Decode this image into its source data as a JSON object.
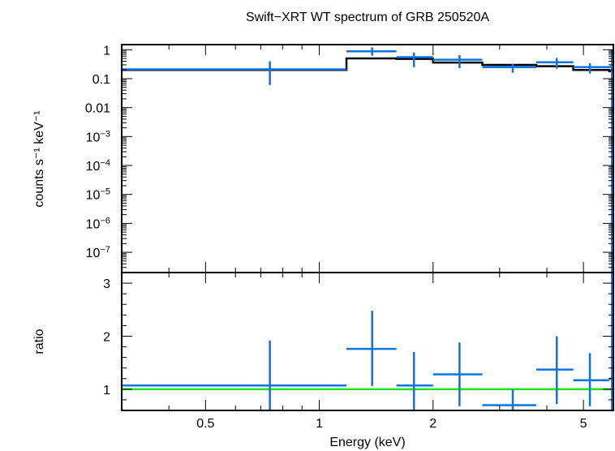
{
  "chart_data": [
    {
      "type": "scatter",
      "title": "Swift−XRT WT spectrum of GRB 250520A",
      "ylabel": "counts s⁻¹ keV⁻¹",
      "xlim": [
        0.3,
        6.0
      ],
      "ylim": [
        2e-08,
        1.5
      ],
      "xscale": "log",
      "yscale": "log",
      "y_ticks": [
        {
          "value": 1,
          "label": "1",
          "exp": ""
        },
        {
          "value": 0.1,
          "label": "0.1",
          "exp": ""
        },
        {
          "value": 0.01,
          "label": "0.01",
          "exp": ""
        },
        {
          "value": 0.001,
          "label": "10",
          "exp": "−3"
        },
        {
          "value": 0.0001,
          "label": "10",
          "exp": "−4"
        },
        {
          "value": 1e-05,
          "label": "10",
          "exp": "−5"
        },
        {
          "value": 1e-06,
          "label": "10",
          "exp": "−6"
        },
        {
          "value": 1e-07,
          "label": "10",
          "exp": "−7"
        }
      ],
      "series": [
        {
          "color": "#0a74e0",
          "points": [
            {
              "x_lo": 0.3,
              "x_hi": 1.18,
              "x": 0.74,
              "y": 0.21,
              "y_lo": 0.06,
              "y_hi": 0.4
            },
            {
              "x_lo": 1.18,
              "x_hi": 1.6,
              "x": 1.38,
              "y": 0.88,
              "y_lo": 0.62,
              "y_hi": 1.2
            },
            {
              "x_lo": 1.6,
              "x_hi": 2.0,
              "x": 1.78,
              "y": 0.55,
              "y_lo": 0.25,
              "y_hi": 0.8
            },
            {
              "x_lo": 2.0,
              "x_hi": 2.7,
              "x": 2.35,
              "y": 0.45,
              "y_lo": 0.23,
              "y_hi": 0.65
            },
            {
              "x_lo": 2.7,
              "x_hi": 3.75,
              "x": 3.25,
              "y": 0.25,
              "y_lo": 0.16,
              "y_hi": 0.33
            },
            {
              "x_lo": 3.75,
              "x_hi": 4.7,
              "x": 4.25,
              "y": 0.37,
              "y_lo": 0.22,
              "y_hi": 0.52
            },
            {
              "x_lo": 4.7,
              "x_hi": 5.85,
              "x": 5.2,
              "y": 0.25,
              "y_lo": 0.15,
              "y_hi": 0.34
            },
            {
              "x_lo": 5.85,
              "x_hi": 6.0,
              "x": 5.95,
              "y": 0.25,
              "y_lo": 2e-08,
              "y_hi": 1.0
            }
          ]
        },
        {
          "type": "step",
          "color": "#000000",
          "steps": [
            {
              "x_lo": 0.3,
              "x_hi": 1.18,
              "y": 0.2
            },
            {
              "x_lo": 1.18,
              "x_hi": 1.6,
              "y": 0.5
            },
            {
              "x_lo": 1.6,
              "x_hi": 2.0,
              "y": 0.48
            },
            {
              "x_lo": 2.0,
              "x_hi": 2.7,
              "y": 0.36
            },
            {
              "x_lo": 2.7,
              "x_hi": 3.75,
              "y": 0.3
            },
            {
              "x_lo": 3.75,
              "x_hi": 4.7,
              "y": 0.27
            },
            {
              "x_lo": 4.7,
              "x_hi": 5.85,
              "y": 0.2
            },
            {
              "x_lo": 5.85,
              "x_hi": 6.0,
              "y": 0.18
            }
          ]
        }
      ]
    },
    {
      "type": "scatter",
      "xlabel": "Energy (keV)",
      "ylabel": "ratio",
      "xlim": [
        0.3,
        6.0
      ],
      "ylim": [
        0.6,
        3.2
      ],
      "xscale": "log",
      "x_ticks": [
        {
          "value": 0.5,
          "label": "0.5"
        },
        {
          "value": 1,
          "label": "1"
        },
        {
          "value": 2,
          "label": "2"
        },
        {
          "value": 5,
          "label": "5"
        }
      ],
      "y_ticks": [
        {
          "value": 1,
          "label": "1"
        },
        {
          "value": 2,
          "label": "2"
        },
        {
          "value": 3,
          "label": "3"
        }
      ],
      "reference_line": {
        "y": 1,
        "color": "#22e022"
      },
      "series": [
        {
          "color": "#0a74e0",
          "points": [
            {
              "x_lo": 0.3,
              "x_hi": 1.18,
              "x": 0.74,
              "y": 1.07,
              "y_lo": 0.6,
              "y_hi": 1.92
            },
            {
              "x_lo": 1.18,
              "x_hi": 1.6,
              "x": 1.38,
              "y": 1.76,
              "y_lo": 1.06,
              "y_hi": 2.48
            },
            {
              "x_lo": 1.6,
              "x_hi": 2.0,
              "x": 1.78,
              "y": 1.07,
              "y_lo": 0.6,
              "y_hi": 1.7
            },
            {
              "x_lo": 2.0,
              "x_hi": 2.7,
              "x": 2.35,
              "y": 1.28,
              "y_lo": 0.68,
              "y_hi": 1.88
            },
            {
              "x_lo": 2.7,
              "x_hi": 3.75,
              "x": 3.25,
              "y": 0.7,
              "y_lo": 0.6,
              "y_hi": 1.0
            },
            {
              "x_lo": 3.75,
              "x_hi": 4.7,
              "x": 4.25,
              "y": 1.37,
              "y_lo": 0.72,
              "y_hi": 2.0
            },
            {
              "x_lo": 4.7,
              "x_hi": 5.85,
              "x": 5.2,
              "y": 1.17,
              "y_lo": 0.68,
              "y_hi": 1.68
            },
            {
              "x_lo": 5.85,
              "x_hi": 6.0,
              "x": 5.95,
              "y": 1.2,
              "y_lo": 0.6,
              "y_hi": 3.2
            }
          ]
        }
      ]
    }
  ]
}
